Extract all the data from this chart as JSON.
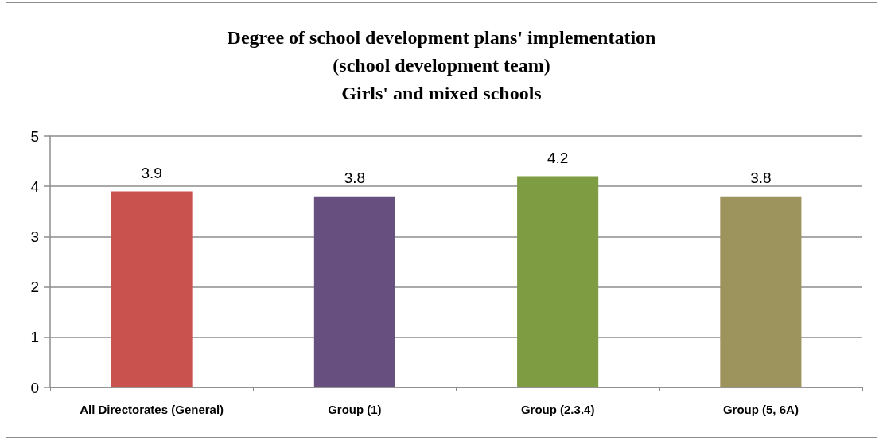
{
  "chart_data": {
    "type": "bar",
    "title": "Degree of school development plans' implementation\n(school development team)\nGirls' and mixed schools",
    "categories": [
      "All Directorates (General)",
      "Group (1)",
      "Group (2.3.4)",
      "Group (5, 6A)"
    ],
    "values": [
      3.9,
      3.8,
      4.2,
      3.8
    ],
    "colors": [
      "#c9524f",
      "#67507f",
      "#7e9c42",
      "#9d935d"
    ],
    "ylim": [
      0,
      5
    ],
    "yticks": [
      0,
      1,
      2,
      3,
      4,
      5
    ],
    "grid": "y",
    "data_labels": true
  }
}
